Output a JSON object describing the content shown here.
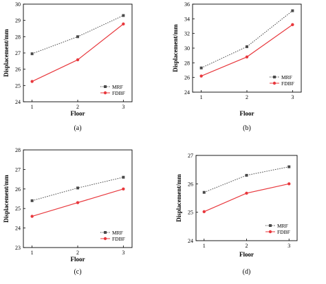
{
  "figure": {
    "panel_labels": [
      "(a)",
      "(b)",
      "(c)",
      "(d)"
    ]
  },
  "colors": {
    "mrf": "#4a4a4a",
    "fdbf": "#e8383d",
    "axis": "#000000"
  },
  "chart_data": [
    {
      "type": "line",
      "panel": "(a)",
      "xlabel": "Floor",
      "ylabel": "Displacement/mm",
      "x": [
        1,
        2,
        3
      ],
      "xticks": [
        "1",
        "2",
        "3"
      ],
      "ylim": [
        24,
        30
      ],
      "yticks": [
        "24",
        "25",
        "26",
        "27",
        "28",
        "29",
        "30"
      ],
      "legend_position": "bottom-right",
      "series": [
        {
          "name": "MRF",
          "values": [
            26.95,
            28.0,
            29.3
          ]
        },
        {
          "name": "FDBF",
          "values": [
            25.25,
            26.58,
            28.78
          ]
        }
      ]
    },
    {
      "type": "line",
      "panel": "(b)",
      "xlabel": "Floor",
      "ylabel": "Displacement/mm",
      "x": [
        1,
        2,
        3
      ],
      "xticks": [
        "1",
        "2",
        "3"
      ],
      "ylim": [
        24,
        36
      ],
      "yticks": [
        "24",
        "26",
        "28",
        "30",
        "32",
        "34",
        "36"
      ],
      "legend_position": "bottom-right",
      "series": [
        {
          "name": "MRF",
          "values": [
            27.3,
            30.2,
            35.1
          ]
        },
        {
          "name": "FDBF",
          "values": [
            26.2,
            28.8,
            33.2
          ]
        }
      ]
    },
    {
      "type": "line",
      "panel": "(c)",
      "xlabel": "Floor",
      "ylabel": "Displacement/mm",
      "x": [
        1,
        2,
        3
      ],
      "xticks": [
        "1",
        "2",
        "3"
      ],
      "ylim": [
        23,
        28
      ],
      "yticks": [
        "23",
        "24",
        "25",
        "26",
        "27",
        "28"
      ],
      "legend_position": "bottom-right",
      "series": [
        {
          "name": "MRF",
          "values": [
            25.4,
            26.05,
            26.6
          ]
        },
        {
          "name": "FDBF",
          "values": [
            24.6,
            25.3,
            26.0
          ]
        }
      ]
    },
    {
      "type": "line",
      "panel": "(d)",
      "xlabel": "Floor",
      "ylabel": "Displacement/mm",
      "x": [
        1,
        2,
        3
      ],
      "xticks": [
        "1",
        "2",
        "3"
      ],
      "ylim": [
        24,
        27
      ],
      "yticks": [
        "24",
        "25",
        "26",
        "27"
      ],
      "legend_position": "bottom-right",
      "series": [
        {
          "name": "MRF",
          "values": [
            25.7,
            26.3,
            26.6
          ]
        },
        {
          "name": "FDBF",
          "values": [
            25.02,
            25.67,
            26.0
          ]
        }
      ]
    }
  ]
}
